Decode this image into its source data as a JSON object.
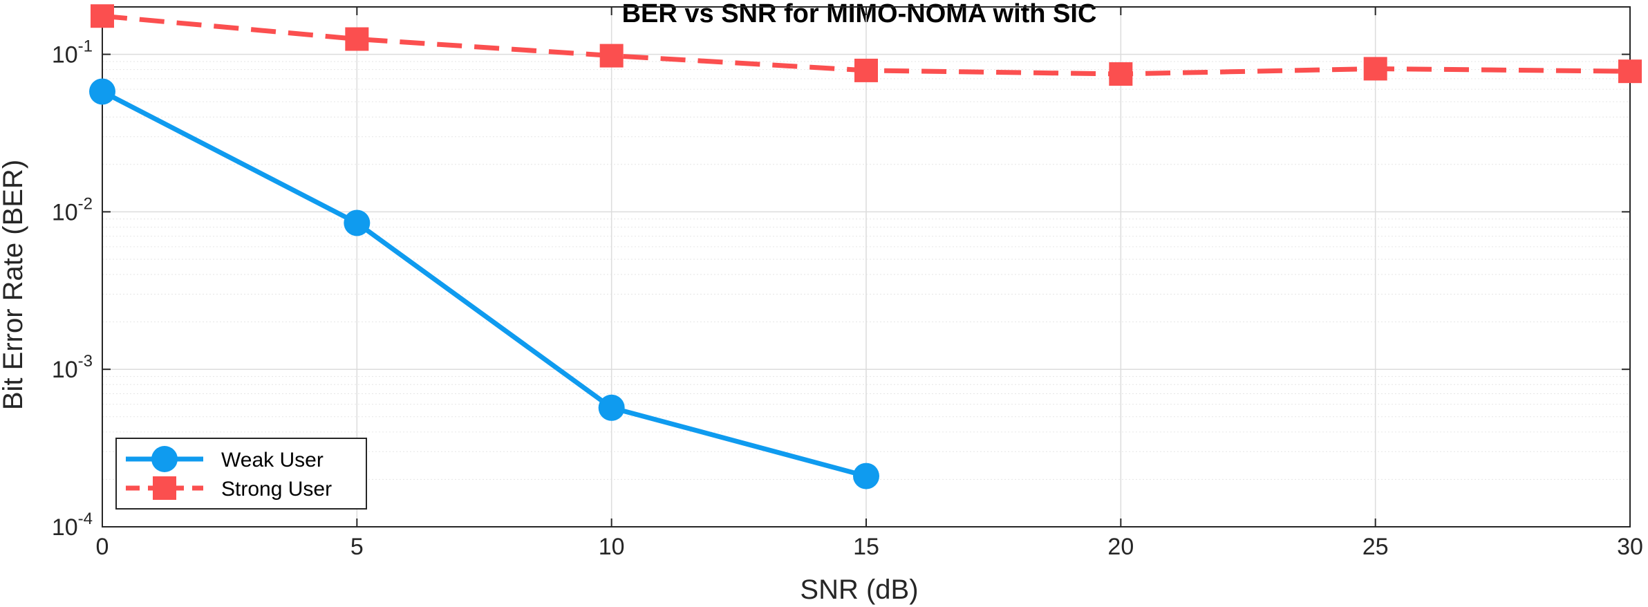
{
  "chart_data": {
    "type": "line",
    "title": "BER vs SNR for MIMO-NOMA with SIC",
    "xlabel": "SNR (dB)",
    "ylabel": "Bit Error Rate (BER)",
    "xlim": [
      0,
      30
    ],
    "ylim": [
      0.0001,
      0.2
    ],
    "yscale": "log",
    "grid": true,
    "minor_grid": true,
    "x_ticks": [
      0,
      5,
      10,
      15,
      20,
      25,
      30
    ],
    "y_ticks": [
      {
        "value": 0.0001,
        "base": "10",
        "exp": "-4"
      },
      {
        "value": 0.001,
        "base": "10",
        "exp": "-3"
      },
      {
        "value": 0.01,
        "base": "10",
        "exp": "-2"
      },
      {
        "value": 0.1,
        "base": "10",
        "exp": "-1"
      }
    ],
    "legend_position": "bottom-left",
    "series": [
      {
        "name": "Weak User",
        "color": "#0f9bef",
        "line_style": "solid",
        "marker": "circle",
        "x": [
          0,
          5,
          10,
          15
        ],
        "y": [
          0.058,
          0.0085,
          0.00057,
          0.00021
        ]
      },
      {
        "name": "Strong User",
        "color": "#fb4f4f",
        "line_style": "dashed",
        "marker": "square",
        "x": [
          0,
          5,
          10,
          15,
          20,
          25,
          30
        ],
        "y": [
          0.175,
          0.125,
          0.098,
          0.079,
          0.075,
          0.081,
          0.078
        ]
      }
    ]
  }
}
